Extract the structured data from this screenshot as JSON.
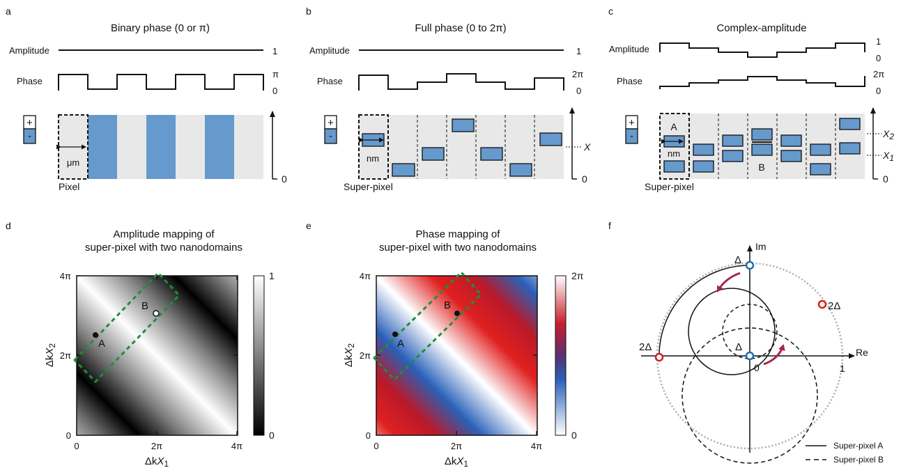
{
  "panels": {
    "a": {
      "letter": "a",
      "title": "Binary phase (0 or π)",
      "amplitude_label": "Amplitude",
      "phase_label": "Phase",
      "amp_value": "1",
      "phase_top": "π",
      "phase_bottom": "0",
      "axis_zero": "0",
      "size_label": "μm",
      "unit_label": "Pixel",
      "plus": "+",
      "minus": "-"
    },
    "b": {
      "letter": "b",
      "title": "Full  phase (0 to 2π)",
      "amplitude_label": "Amplitude",
      "phase_label": "Phase",
      "amp_value": "1",
      "phase_top": "2π",
      "phase_bottom": "0",
      "axis_zero": "0",
      "axis_x": "X",
      "size_label": "nm",
      "unit_label": "Super-pixel",
      "plus": "+",
      "minus": "-"
    },
    "c": {
      "letter": "c",
      "title": "Complex-amplitude",
      "amplitude_label": "Amplitude",
      "phase_label": "Phase",
      "amp_top": "1",
      "amp_bottom": "0",
      "phase_top": "2π",
      "phase_bottom": "0",
      "axis_zero": "0",
      "axis_x2": "X",
      "axis_x2_sub": "2",
      "axis_x1": "X",
      "axis_x1_sub": "1",
      "label_a": "A",
      "label_b": "B",
      "size_label": "nm",
      "unit_label": "Super-pixel",
      "plus": "+",
      "minus": "-"
    },
    "d": {
      "letter": "d",
      "title_line1": "Amplitude mapping of",
      "title_line2": "super-pixel with two nanodomains",
      "point_a": "A",
      "point_b": "B",
      "colorbar_max": "1",
      "colorbar_min": "0"
    },
    "e": {
      "letter": "e",
      "title_line1": "Phase mapping of",
      "title_line2": "super-pixel with two nanodomains",
      "point_a": "A",
      "point_b": "B",
      "colorbar_max": "2π",
      "colorbar_min": "0"
    },
    "f": {
      "letter": "f",
      "axis_im": "Im",
      "axis_re": "Re",
      "re_one": "1",
      "origin_zero": "0",
      "delta_top": "Δ",
      "delta_origin": "Δ",
      "two_delta_right": "2Δ",
      "two_delta_left": "2Δ",
      "legend": [
        "Super-pixel A",
        "Super-pixel B"
      ]
    }
  },
  "axes": {
    "x_label": "Δk",
    "x_var": "X",
    "x_sub": "1",
    "y_label": "Δk",
    "y_var": "X",
    "y_sub": "2",
    "ticks": [
      "0",
      "2π",
      "4π"
    ]
  },
  "colors": {
    "domain_blue": "#6699cc",
    "cell_gray": "#e8e8e8",
    "dashed_green": "#1f8f3a",
    "marker_blue": "#1a6fb5",
    "marker_red": "#d42020",
    "arrow_red": "#a8254a",
    "arrow_blue": "#3a6fb0"
  }
}
